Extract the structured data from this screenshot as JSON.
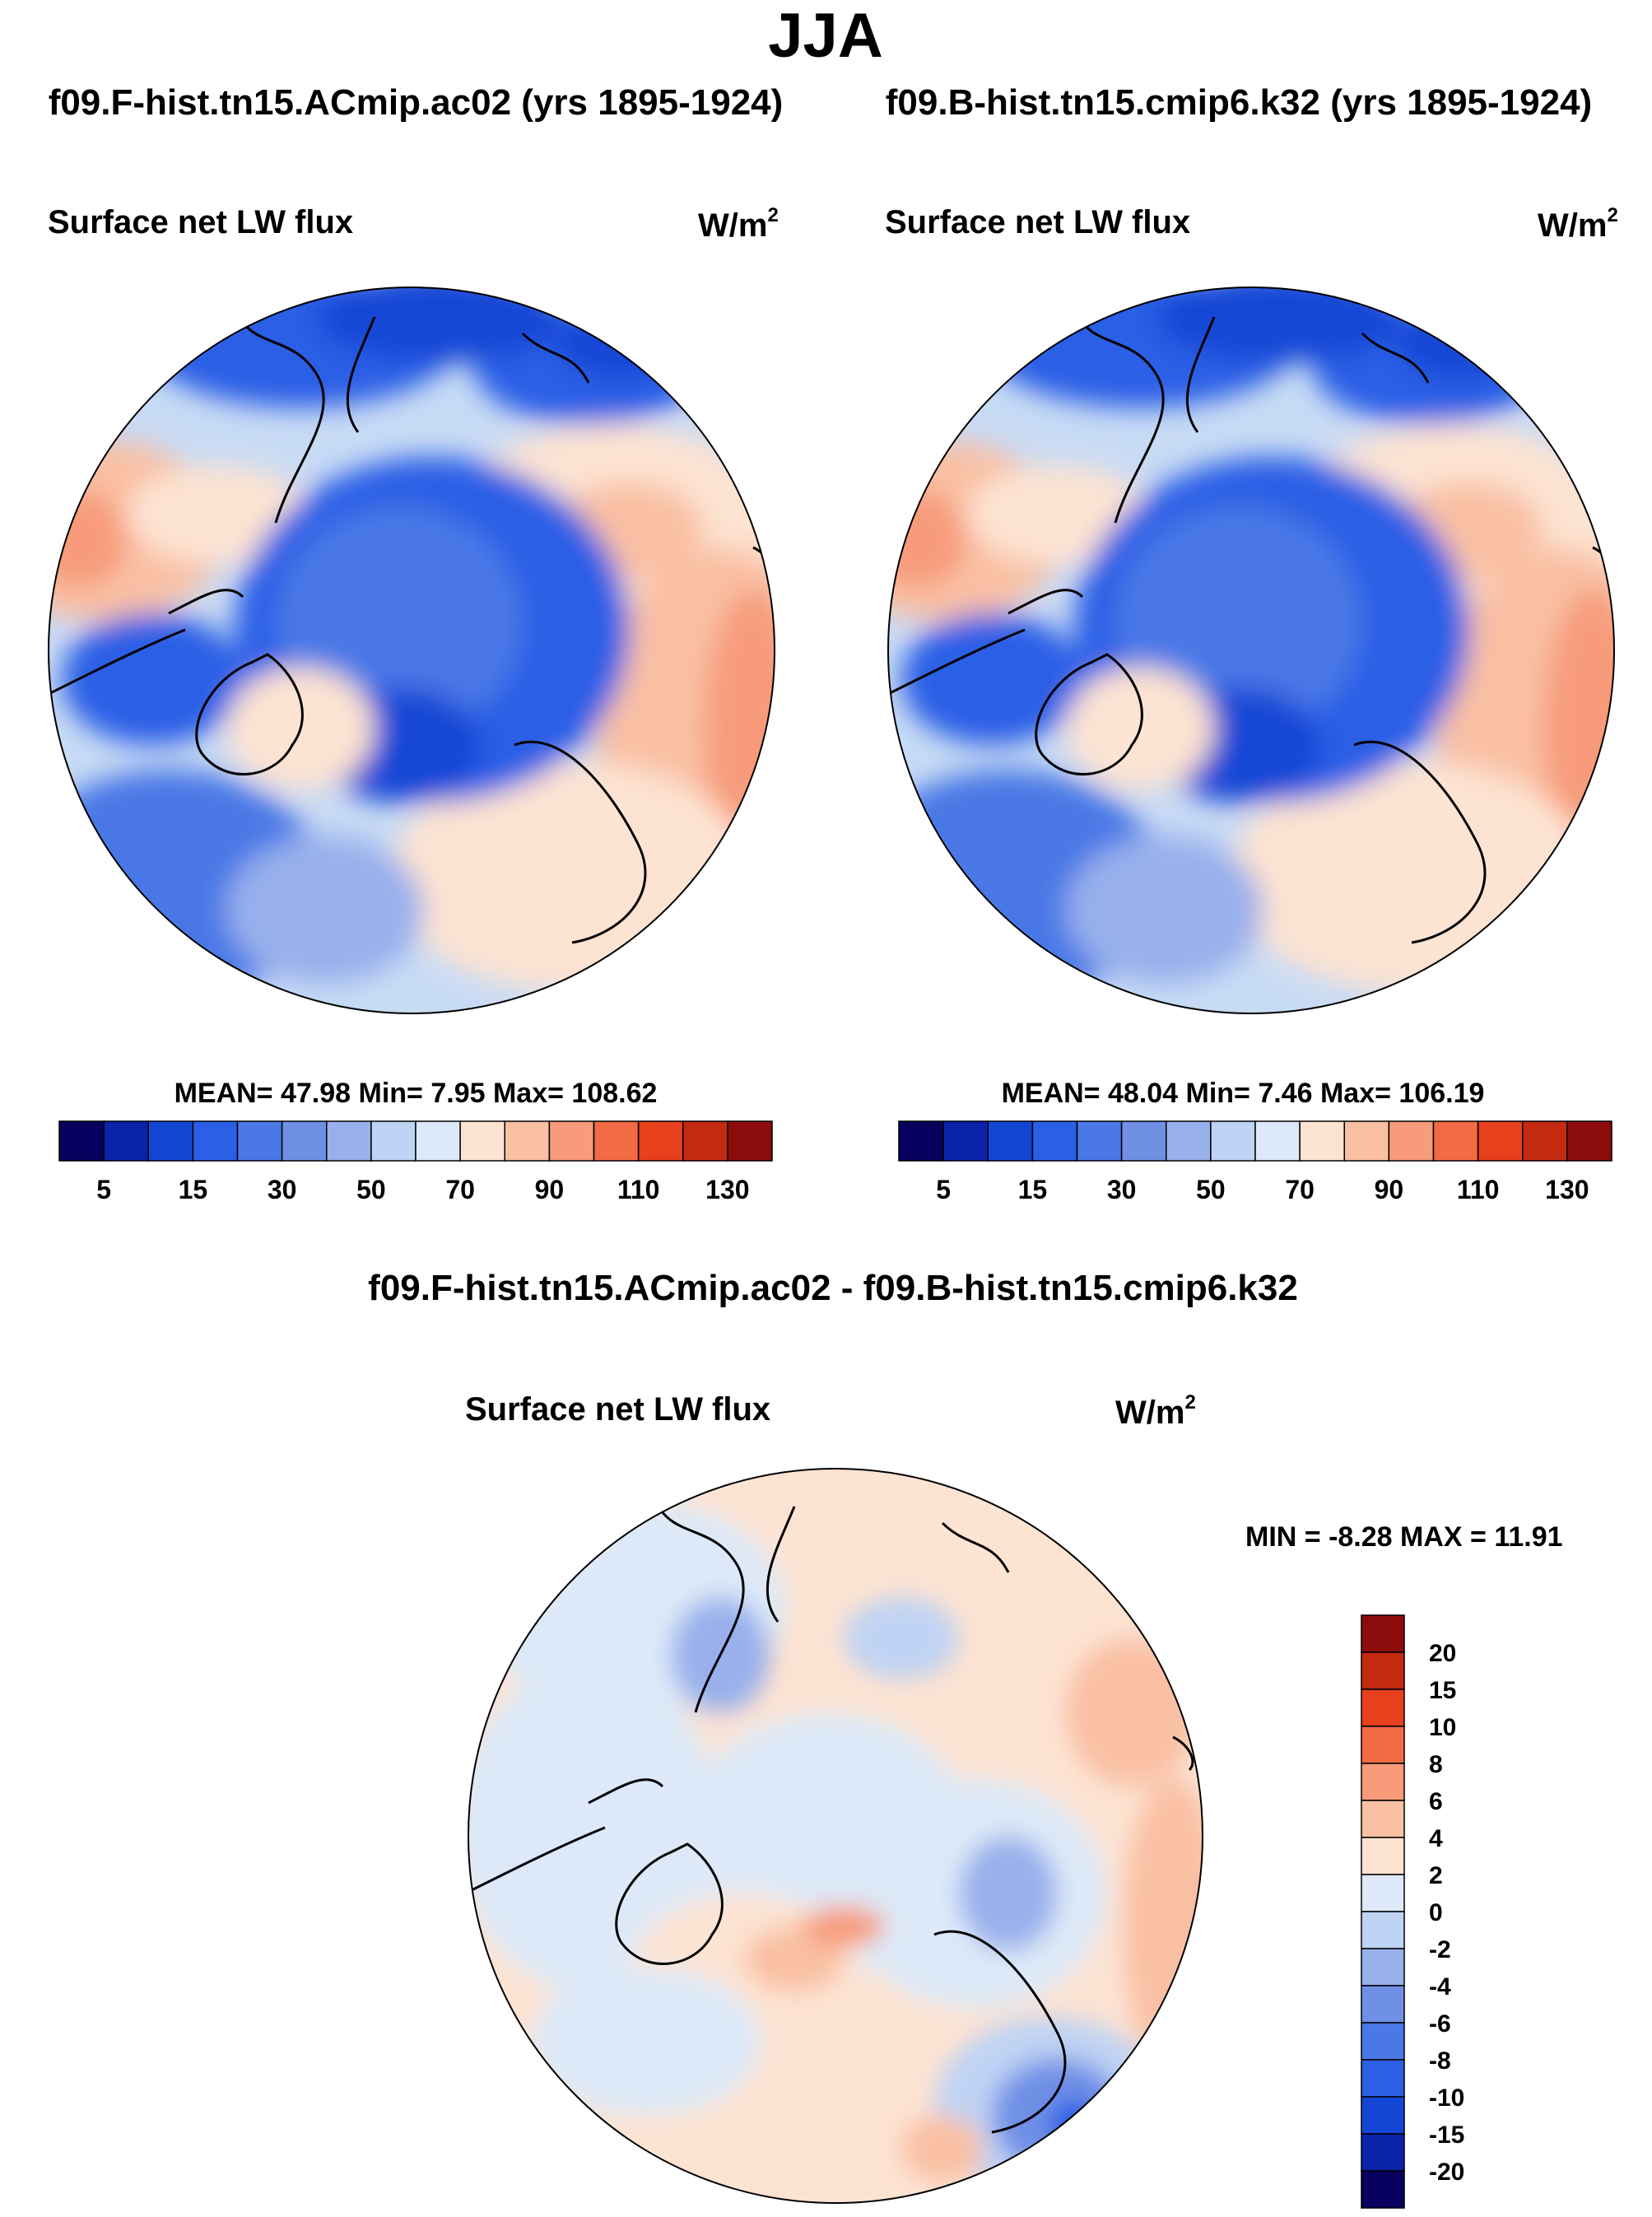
{
  "season": "JJA",
  "panels": {
    "left": {
      "run_title": "f09.F-hist.tn15.ACmip.ac02 (yrs 1895-1924)",
      "title": "Surface net LW flux",
      "units_base": "W/m",
      "units_exp": "2",
      "stats_text": "MEAN=  47.98  Min=   7.95  Max= 108.62"
    },
    "right": {
      "run_title": "f09.B-hist.tn15.cmip6.k32 (yrs 1895-1924)",
      "title": "Surface net LW flux",
      "units_base": "W/m",
      "units_exp": "2",
      "stats_text": "MEAN=  48.04  Min=   7.46  Max= 106.19"
    },
    "diff": {
      "header": "f09.F-hist.tn15.ACmip.ac02 - f09.B-hist.tn15.cmip6.k32",
      "title": "Surface net LW flux",
      "units_base": "W/m",
      "units_exp": "2",
      "stats_text": "MIN =  -8.28 MAX =  11.91"
    }
  },
  "chart_data": [
    {
      "type": "heatmap",
      "projection": "north-polar-stereographic",
      "title": "Surface net LW flux",
      "units": "W/m^2",
      "experiment": "f09.F-hist.tn15.ACmip.ac02",
      "years": "1895-1924",
      "season": "JJA",
      "mean": 47.98,
      "min": 7.95,
      "max": 108.62,
      "colorbar": {
        "orientation": "horizontal",
        "levels": [
          5,
          10,
          15,
          20,
          30,
          40,
          50,
          60,
          70,
          80,
          90,
          100,
          110,
          120,
          130
        ],
        "labeled_ticks": [
          5,
          15,
          30,
          50,
          70,
          90,
          110,
          130
        ],
        "colors": [
          "#08005e",
          "#0a23a8",
          "#1446d6",
          "#2a5fe6",
          "#4a78e6",
          "#7090e6",
          "#98b0ec",
          "#bfd3f4",
          "#dde9f8",
          "#fde3d2",
          "#f9c0a4",
          "#f79b7a",
          "#f26b44",
          "#e6401c",
          "#c42a10",
          "#8c0b0b"
        ]
      }
    },
    {
      "type": "heatmap",
      "projection": "north-polar-stereographic",
      "title": "Surface net LW flux",
      "units": "W/m^2",
      "experiment": "f09.B-hist.tn15.cmip6.k32",
      "years": "1895-1924",
      "season": "JJA",
      "mean": 48.04,
      "min": 7.46,
      "max": 106.19,
      "colorbar": {
        "orientation": "horizontal",
        "levels": [
          5,
          10,
          15,
          20,
          30,
          40,
          50,
          60,
          70,
          80,
          90,
          100,
          110,
          120,
          130
        ],
        "labeled_ticks": [
          5,
          15,
          30,
          50,
          70,
          90,
          110,
          130
        ],
        "colors": [
          "#08005e",
          "#0a23a8",
          "#1446d6",
          "#2a5fe6",
          "#4a78e6",
          "#7090e6",
          "#98b0ec",
          "#bfd3f4",
          "#dde9f8",
          "#fde3d2",
          "#f9c0a4",
          "#f79b7a",
          "#f26b44",
          "#e6401c",
          "#c42a10",
          "#8c0b0b"
        ]
      }
    },
    {
      "type": "heatmap",
      "projection": "north-polar-stereographic",
      "title": "Surface net LW flux",
      "units": "W/m^2",
      "difference": "f09.F-hist.tn15.ACmip.ac02 - f09.B-hist.tn15.cmip6.k32",
      "season": "JJA",
      "min": -8.28,
      "max": 11.91,
      "colorbar": {
        "orientation": "vertical",
        "levels": [
          -20,
          -15,
          -10,
          -8,
          -6,
          -4,
          -2,
          0,
          2,
          4,
          6,
          8,
          10,
          15,
          20
        ],
        "labeled_ticks": [
          -20,
          -15,
          -10,
          -8,
          -6,
          -4,
          -2,
          0,
          2,
          4,
          6,
          8,
          10,
          15,
          20
        ],
        "colors": [
          "#08005e",
          "#0a23a8",
          "#1446d6",
          "#2a5fe6",
          "#4a78e6",
          "#7090e6",
          "#98b0ec",
          "#bfd3f4",
          "#dde9f8",
          "#fde3d2",
          "#f9c0a4",
          "#f79b7a",
          "#f26b44",
          "#e6401c",
          "#c42a10",
          "#8c0b0b"
        ]
      }
    }
  ]
}
